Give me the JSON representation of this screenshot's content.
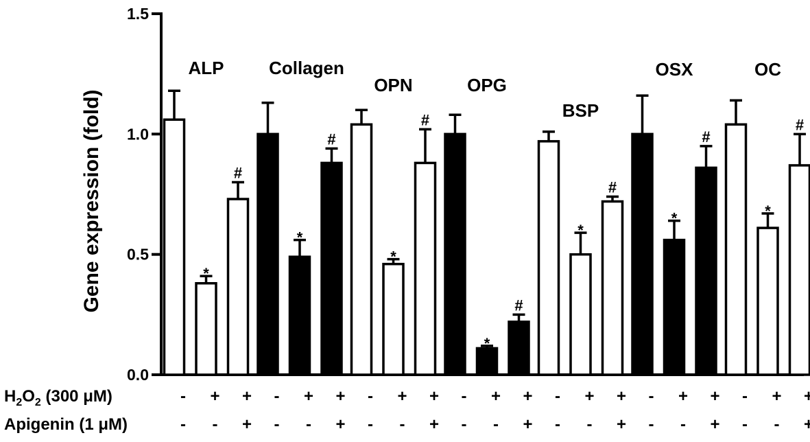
{
  "chart_data": {
    "type": "bar",
    "ylabel": "Gene expression (fold)",
    "ylim": [
      0,
      1.5
    ],
    "yticks": [
      "0.0",
      "0.5",
      "1.0",
      "1.5"
    ],
    "grid": false,
    "groups": [
      {
        "label": "ALP",
        "fill": "white",
        "values": [
          1.06,
          0.38,
          0.73
        ],
        "errors": [
          0.12,
          0.03,
          0.07
        ],
        "marks": [
          "",
          "*",
          "#"
        ]
      },
      {
        "label": "Collagen",
        "fill": "black",
        "values": [
          1.0,
          0.49,
          0.88
        ],
        "errors": [
          0.13,
          0.07,
          0.06
        ],
        "marks": [
          "",
          "*",
          "#"
        ]
      },
      {
        "label": "OPN",
        "fill": "white",
        "values": [
          1.04,
          0.46,
          0.88
        ],
        "errors": [
          0.06,
          0.02,
          0.14
        ],
        "marks": [
          "",
          "*",
          "#"
        ]
      },
      {
        "label": "OPG",
        "fill": "black",
        "values": [
          1.0,
          0.11,
          0.22
        ],
        "errors": [
          0.08,
          0.01,
          0.03
        ],
        "marks": [
          "",
          "*",
          "#"
        ]
      },
      {
        "label": "BSP",
        "fill": "white",
        "values": [
          0.97,
          0.5,
          0.72
        ],
        "errors": [
          0.04,
          0.09,
          0.02
        ],
        "marks": [
          "",
          "*",
          "#"
        ]
      },
      {
        "label": "OSX",
        "fill": "black",
        "values": [
          1.0,
          0.56,
          0.86
        ],
        "errors": [
          0.16,
          0.08,
          0.09
        ],
        "marks": [
          "",
          "*",
          "#"
        ]
      },
      {
        "label": "OC",
        "fill": "white",
        "values": [
          1.04,
          0.61,
          0.87
        ],
        "errors": [
          0.1,
          0.06,
          0.13
        ],
        "marks": [
          "",
          "*",
          "#"
        ]
      }
    ],
    "conditions": [
      {
        "label_main": "H",
        "label_sub": "2",
        "label_mid": "O",
        "label_sub2": "2",
        "label_rest": " (300 μM)",
        "signs": [
          "-",
          "+",
          "+"
        ]
      },
      {
        "label_main": "Apigenin (1 μM)",
        "signs": [
          "-",
          "-",
          "+"
        ]
      }
    ]
  }
}
